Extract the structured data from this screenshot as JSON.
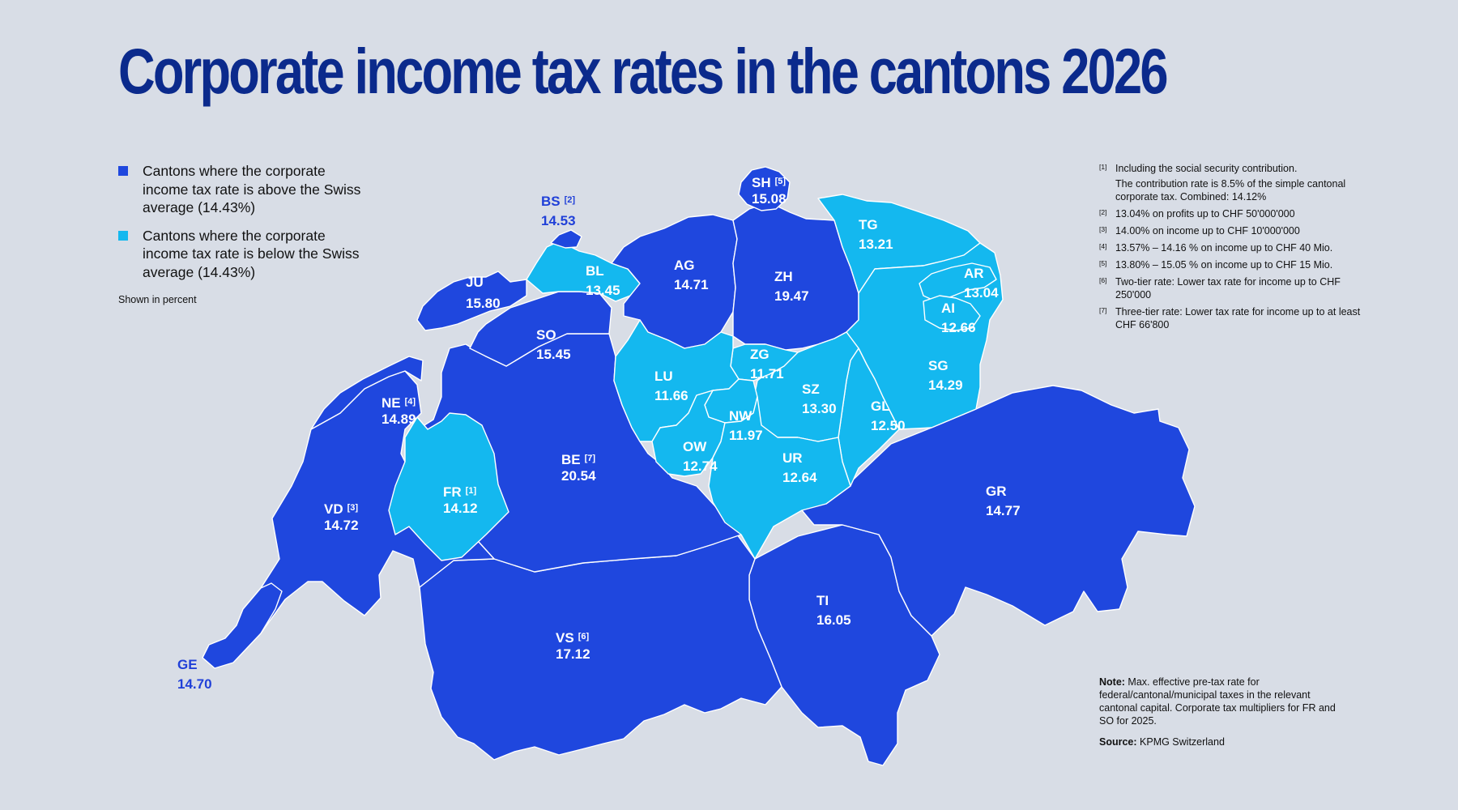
{
  "title": "Corporate income tax rates in the cantons 2026",
  "colors": {
    "above": "#1f47de",
    "below": "#14b8ef",
    "title": "#0b2a8c",
    "background": "#d8dde6",
    "outside_label": "#2040d8"
  },
  "legend": {
    "above": "Cantons where the corporate income tax rate is above the Swiss average (14.43%)",
    "below": "Cantons where the corporate income tax rate is below the Swiss average (14.43%)",
    "unit_note": "Shown in percent"
  },
  "map_data": {
    "swiss_average": 14.43,
    "cantons": [
      {
        "code": "BS",
        "ref": "[2]",
        "value": "14.53",
        "category": "above",
        "label_outside": true
      },
      {
        "code": "SH",
        "ref": "[5]",
        "value": "15.08",
        "category": "above"
      },
      {
        "code": "JU",
        "ref": "",
        "value": "15.80",
        "category": "above"
      },
      {
        "code": "BL",
        "ref": "",
        "value": "13.45",
        "category": "below"
      },
      {
        "code": "AG",
        "ref": "",
        "value": "14.71",
        "category": "above"
      },
      {
        "code": "ZH",
        "ref": "",
        "value": "19.47",
        "category": "above"
      },
      {
        "code": "TG",
        "ref": "",
        "value": "13.21",
        "category": "below"
      },
      {
        "code": "AR",
        "ref": "",
        "value": "13.04",
        "category": "below"
      },
      {
        "code": "AI",
        "ref": "",
        "value": "12.66",
        "category": "below"
      },
      {
        "code": "SO",
        "ref": "",
        "value": "15.45",
        "category": "above"
      },
      {
        "code": "SG",
        "ref": "",
        "value": "14.29",
        "category": "below"
      },
      {
        "code": "ZG",
        "ref": "",
        "value": "11.71",
        "category": "below"
      },
      {
        "code": "LU",
        "ref": "",
        "value": "11.66",
        "category": "below"
      },
      {
        "code": "NE",
        "ref": "[4]",
        "value": "14.89",
        "category": "above"
      },
      {
        "code": "SZ",
        "ref": "",
        "value": "13.30",
        "category": "below"
      },
      {
        "code": "GL",
        "ref": "",
        "value": "12.50",
        "category": "below"
      },
      {
        "code": "NW",
        "ref": "",
        "value": "11.97",
        "category": "below"
      },
      {
        "code": "BE",
        "ref": "[7]",
        "value": "20.54",
        "category": "above"
      },
      {
        "code": "OW",
        "ref": "",
        "value": "12.74",
        "category": "below"
      },
      {
        "code": "UR",
        "ref": "",
        "value": "12.64",
        "category": "below"
      },
      {
        "code": "FR",
        "ref": "[1]",
        "value": "14.12",
        "category": "below"
      },
      {
        "code": "GR",
        "ref": "",
        "value": "14.77",
        "category": "above"
      },
      {
        "code": "VD",
        "ref": "[3]",
        "value": "14.72",
        "category": "above"
      },
      {
        "code": "TI",
        "ref": "",
        "value": "16.05",
        "category": "above"
      },
      {
        "code": "VS",
        "ref": "[6]",
        "value": "17.12",
        "category": "above"
      },
      {
        "code": "GE",
        "ref": "",
        "value": "14.70",
        "category": "above",
        "label_outside": true
      }
    ]
  },
  "footnotes": [
    {
      "mark": "[1]",
      "text": "Including the social security contribution.",
      "sub": "The contribution rate is 8.5% of the simple cantonal corporate tax. Combined: 14.12%"
    },
    {
      "mark": "[2]",
      "text": "13.04% on profits up to CHF 50'000'000"
    },
    {
      "mark": "[3]",
      "text": "14.00% on income up to CHF 10'000'000"
    },
    {
      "mark": "[4]",
      "text": "13.57% – 14.16 % on income up to CHF 40 Mio."
    },
    {
      "mark": "[5]",
      "text": "13.80% – 15.05 % on income up to CHF 15 Mio."
    },
    {
      "mark": "[6]",
      "text": "Two-tier rate: Lower tax rate for income up to CHF 250'000"
    },
    {
      "mark": "[7]",
      "text": "Three-tier rate: Lower tax rate for income up to at least CHF 66'800"
    }
  ],
  "note": {
    "label": "Note:",
    "text": " Max. effective pre-tax rate for federal/cantonal/municipal taxes in the relevant cantonal capital. Corporate tax multipliers for FR and SO for 2025."
  },
  "source": {
    "label": "Source:",
    "text": " KPMG Switzerland"
  }
}
